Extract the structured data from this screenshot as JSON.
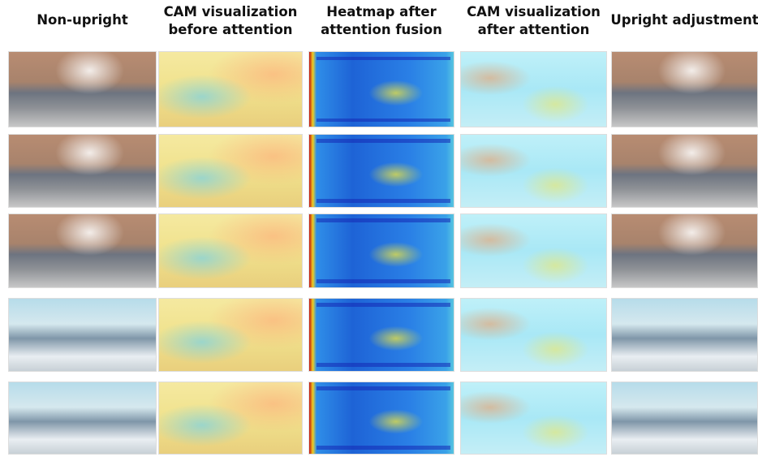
{
  "columns": [
    {
      "lines": [
        "Non-upright"
      ]
    },
    {
      "lines": [
        "CAM visualization",
        "before attention"
      ]
    },
    {
      "lines": [
        "Heatmap after",
        "attention fusion"
      ]
    },
    {
      "lines": [
        "CAM visualization",
        "after attention"
      ]
    },
    {
      "lines": [
        "Upright adjustment"
      ]
    }
  ]
}
